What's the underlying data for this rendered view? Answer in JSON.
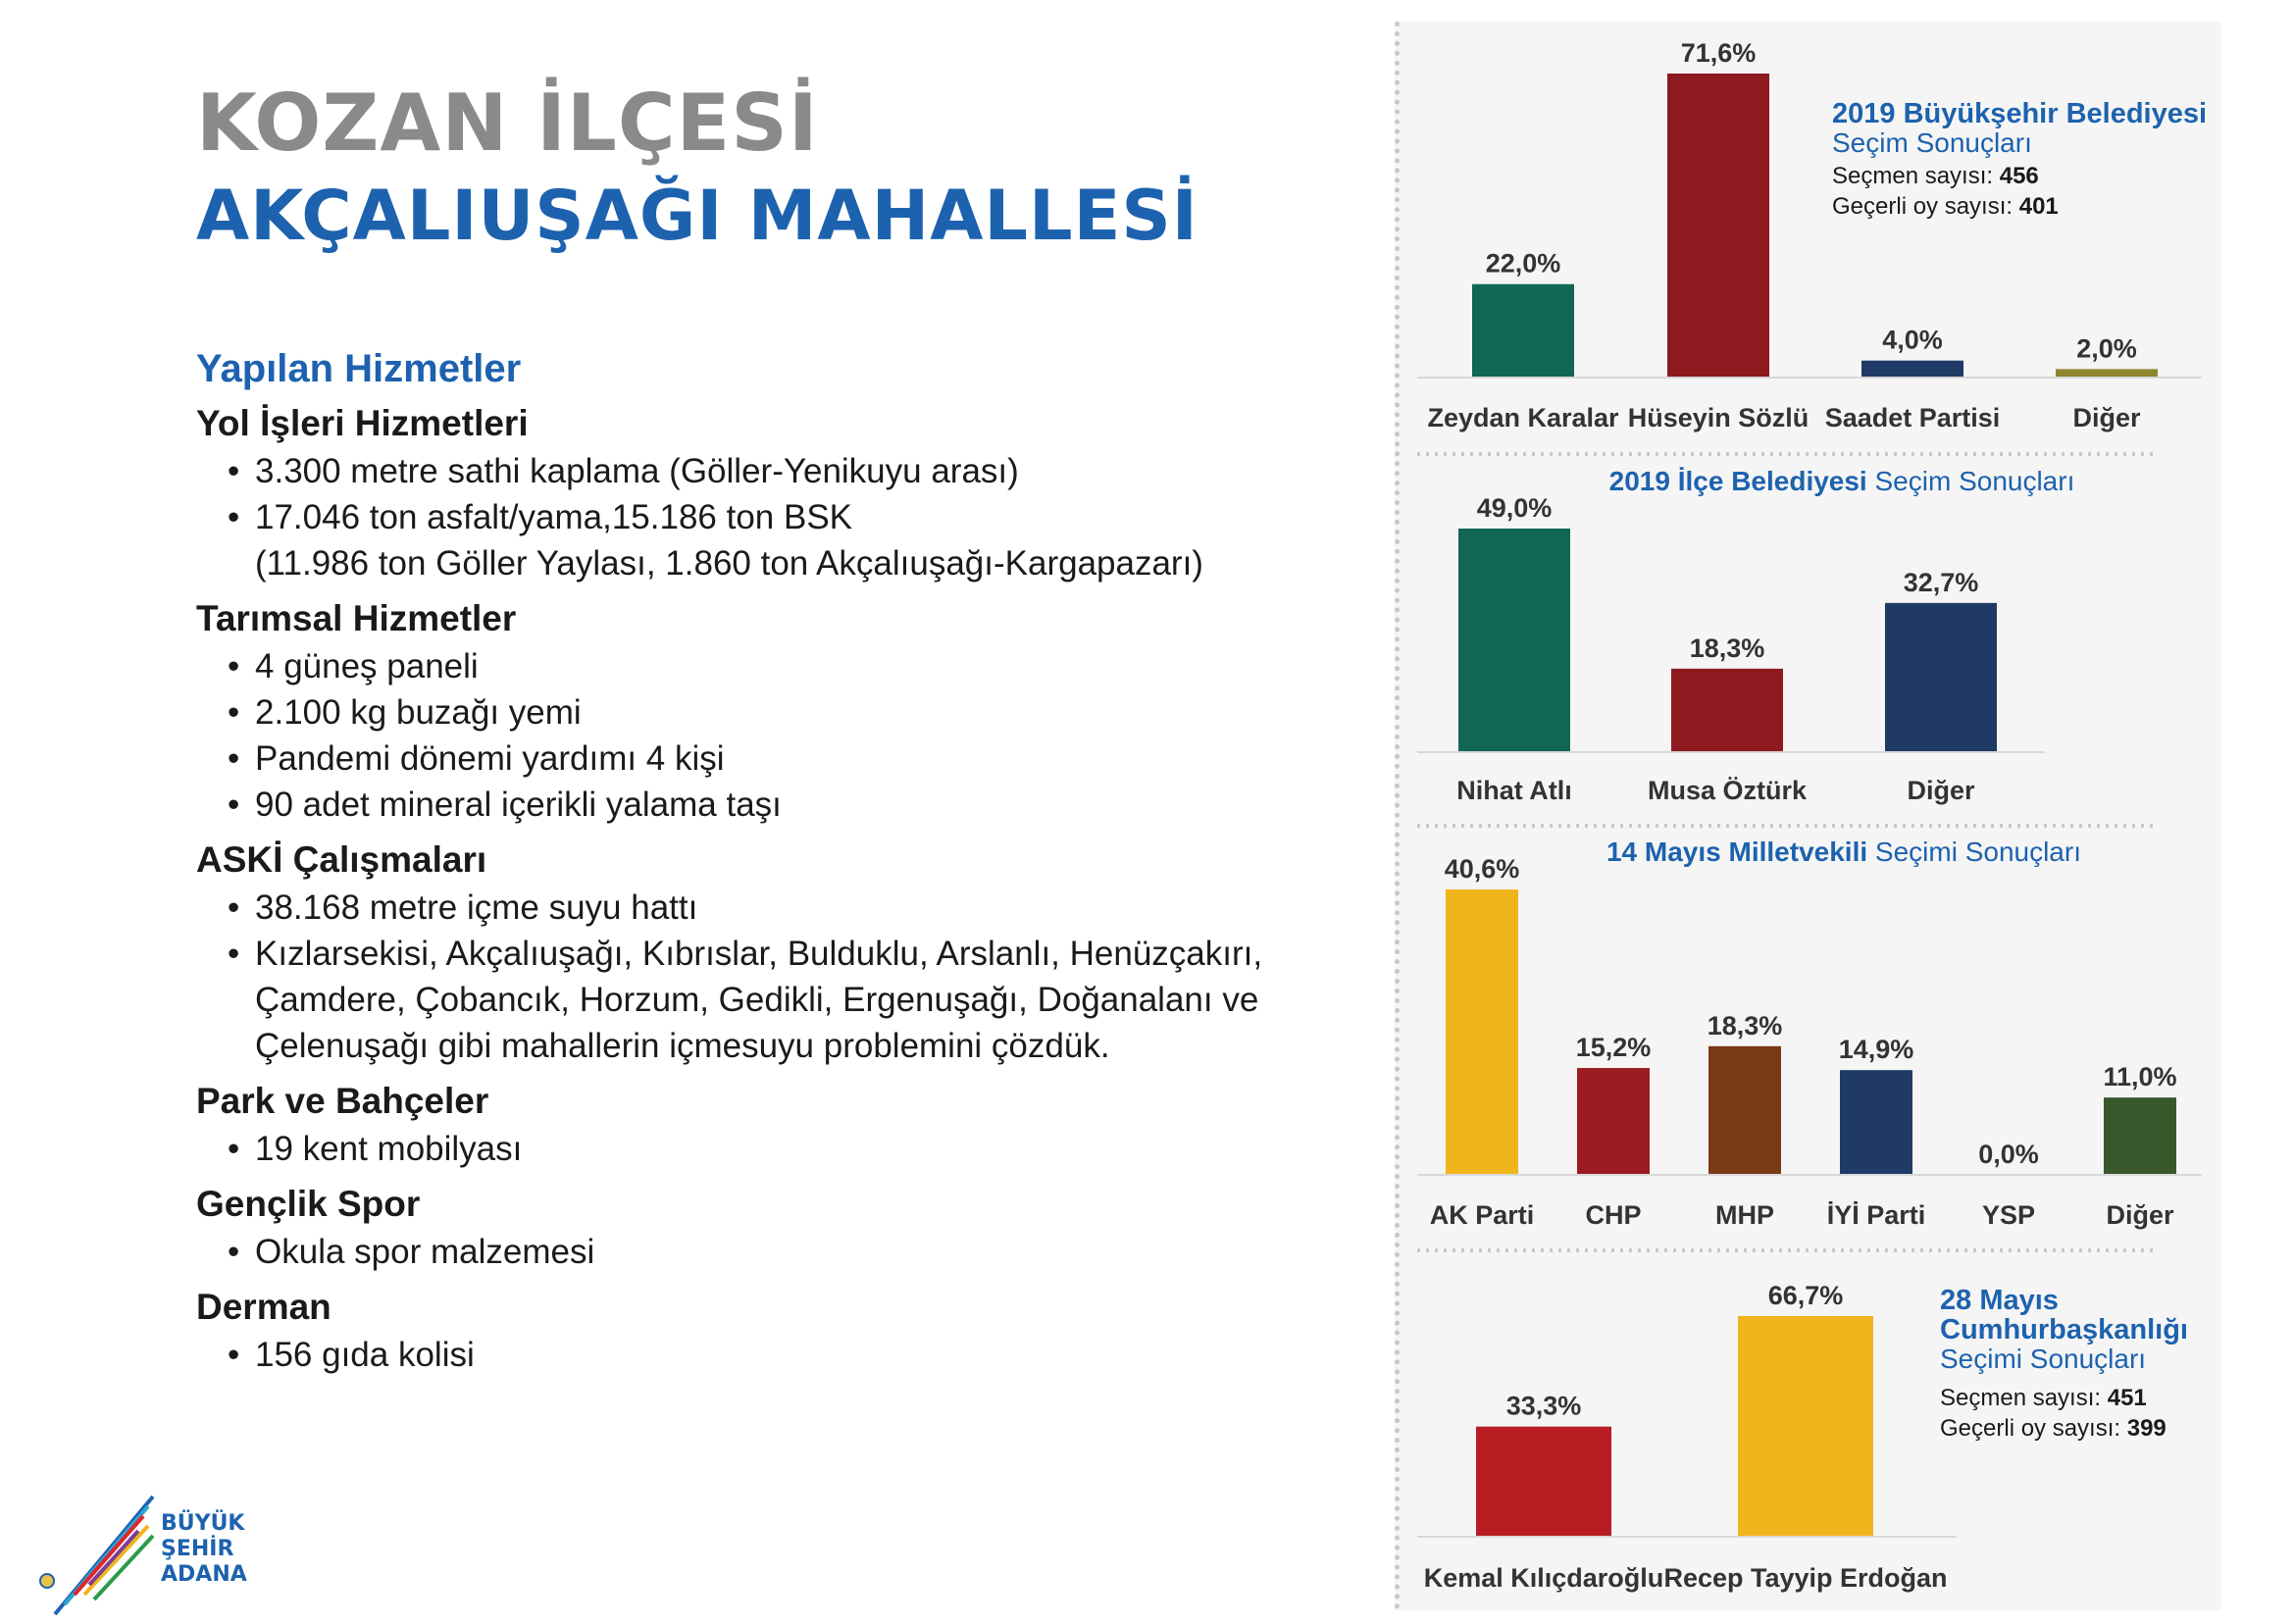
{
  "header": {
    "line1": "KOZAN İLÇESİ",
    "line2": "AKÇALIUŞAĞI MAHALLESİ"
  },
  "services": {
    "heading": "Yapılan Hizmetler",
    "sections": [
      {
        "title": "Yol İşleri Hizmetleri",
        "items": [
          "3.300 metre sathi kaplama (Göller-Yenikuyu arası)",
          "17.046 ton asfalt/yama,15.186 ton BSK"
        ],
        "extra": "(11.986 ton Göller Yaylası, 1.860 ton Akçalıuşağı-Kargapazarı)"
      },
      {
        "title": "Tarımsal Hizmetler",
        "items": [
          "4 güneş paneli",
          "2.100 kg buzağı yemi",
          "Pandemi dönemi yardımı 4 kişi",
          "90 adet mineral içerikli yalama taşı"
        ]
      },
      {
        "title": "ASKİ Çalışmaları",
        "items": [
          "38.168 metre içme suyu hattı",
          "Kızlarsekisi, Akçalıuşağı, Kıbrıslar, Bulduklu, Arslanlı, Henüzçakırı,"
        ],
        "extra2": [
          "Çamdere, Çobancık, Horzum, Gedikli, Ergenuşağı, Doğanalanı ve",
          "Çelenuşağı gibi mahallerin içmesuyu problemini çözdük."
        ]
      },
      {
        "title": "Park ve Bahçeler",
        "items": [
          "19 kent mobilyası"
        ]
      },
      {
        "title": "Gençlik Spor",
        "items": [
          "Okula spor malzemesi"
        ]
      },
      {
        "title": "Derman",
        "items": [
          "156 gıda kolisi"
        ]
      }
    ]
  },
  "logo": {
    "line1": "BÜYÜK",
    "line2": "ŞEHİR",
    "line3": "ADANA"
  },
  "chart_data": [
    {
      "type": "bar",
      "title_bold": "2019 Büyükşehir Belediyesi",
      "title_rest": "Seçim Sonuçları",
      "info": [
        {
          "label": "Seçmen sayısı: ",
          "value": "456"
        },
        {
          "label": "Geçerli oy sayısı: ",
          "value": "401"
        }
      ],
      "categories": [
        "Zeydan Karalar",
        "Hüseyin Sözlü",
        "Saadet Partisi",
        "Diğer"
      ],
      "values": [
        22.0,
        71.6,
        4.0,
        2.0
      ],
      "labels": [
        "22,0%",
        "71,6%",
        "4,0%",
        "2,0%"
      ],
      "colors": [
        "#116654",
        "#8c1a1e",
        "#1f3a66",
        "#8f8630"
      ],
      "ylim": [
        0,
        71.6
      ]
    },
    {
      "type": "bar",
      "title_bold": "2019 İlçe Belediyesi",
      "title_rest": " Seçim Sonuçları",
      "categories": [
        "Nihat Atlı",
        "Musa Öztürk",
        "Diğer"
      ],
      "values": [
        49.0,
        18.3,
        32.7
      ],
      "labels": [
        "49,0%",
        "18,3%",
        "32,7%"
      ],
      "colors": [
        "#116654",
        "#8c1a1e",
        "#1f3a66"
      ],
      "ylim": [
        0,
        49.0
      ]
    },
    {
      "type": "bar",
      "title_bold": "14 Mayıs Milletvekili",
      "title_rest": " Seçimi Sonuçları",
      "categories": [
        "AK Parti",
        "CHP",
        "MHP",
        "İYİ Parti",
        "YSP",
        "Diğer"
      ],
      "values": [
        40.6,
        15.2,
        18.3,
        14.9,
        0.0,
        11.0
      ],
      "labels": [
        "40,6%",
        "15,2%",
        "18,3%",
        "14,9%",
        "0,0%",
        "11,0%"
      ],
      "colors": [
        "#f1b51c",
        "#9b1b20",
        "#7a3a16",
        "#1f3a66",
        "#888888",
        "#38572a"
      ],
      "ylim": [
        0,
        40.6
      ]
    },
    {
      "type": "bar",
      "title_bold": "28 Mayıs",
      "title_bold2": "Cumhurbaşkanlığı",
      "title_rest": "Seçimi Sonuçları",
      "info": [
        {
          "label": "Seçmen sayısı: ",
          "value": "451"
        },
        {
          "label": "Geçerli oy sayısı: ",
          "value": "399"
        }
      ],
      "categories": [
        "Kemal Kılıçdaroğlu",
        "Recep Tayyip Erdoğan"
      ],
      "values": [
        33.3,
        66.7
      ],
      "labels": [
        "33,3%",
        "66,7%"
      ],
      "colors": [
        "#b81d24",
        "#f1b51c"
      ],
      "ylim": [
        0,
        66.7
      ]
    }
  ]
}
